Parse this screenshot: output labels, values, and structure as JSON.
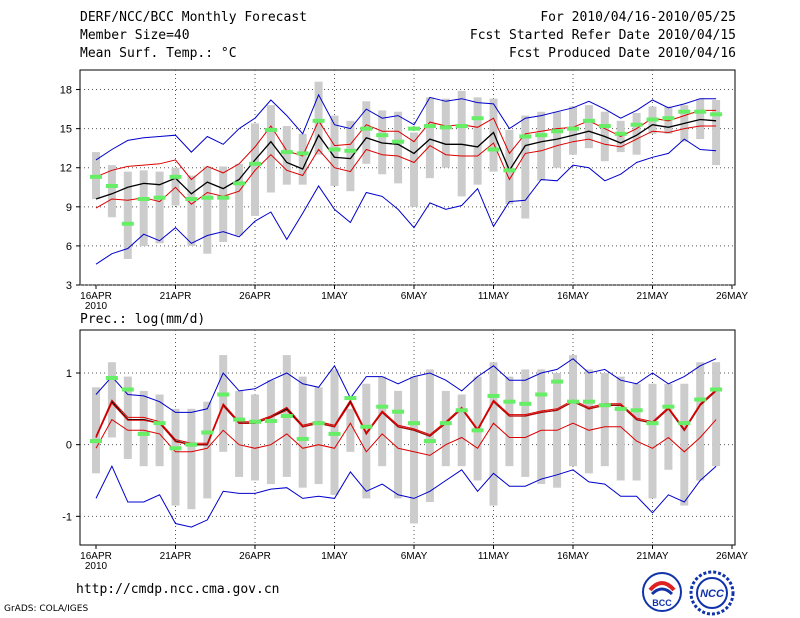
{
  "header": {
    "title": "DERF/NCC/BCC Monthly Forecast",
    "member_size": "Member Size=40",
    "variable": "Mean Surf. Temp.: °C",
    "period": "For 2010/04/16-2010/05/25",
    "fcst_started": "Fcst Started Refer Date 2010/04/15",
    "fcst_produced": "Fcst Produced Date 2010/04/16"
  },
  "footer": {
    "url": "http://cmdp.ncc.cma.gov.cn",
    "credit": "GrADS: COLA/IGES",
    "logo1_text": "BCC",
    "logo2_text": "NCC"
  },
  "colors": {
    "box": "#cccccc",
    "obs": "#66ee66",
    "envelope": "#0000cc",
    "quantile": "#dd0000",
    "mean": "#000000",
    "grid": "#555555"
  },
  "chart_data": [
    {
      "type": "line",
      "title": "Mean Surf. Temp.: °C",
      "x": [
        "16APR",
        "17APR",
        "18APR",
        "19APR",
        "20APR",
        "21APR",
        "22APR",
        "23APR",
        "24APR",
        "25APR",
        "26APR",
        "27APR",
        "28APR",
        "29APR",
        "30APR",
        "1MAY",
        "2MAY",
        "3MAY",
        "4MAY",
        "5MAY",
        "6MAY",
        "7MAY",
        "8MAY",
        "9MAY",
        "10MAY",
        "11MAY",
        "12MAY",
        "13MAY",
        "14MAY",
        "15MAY",
        "16MAY",
        "17MAY",
        "18MAY",
        "19MAY",
        "20MAY",
        "21MAY",
        "22MAY",
        "23MAY",
        "24MAY",
        "25MAY"
      ],
      "xticks": [
        "16APR",
        "21APR",
        "26APR",
        "1MAY",
        "6MAY",
        "11MAY",
        "16MAY",
        "21MAY",
        "26MAY"
      ],
      "xtick_sub": "2010",
      "yticks": [
        3,
        6,
        9,
        12,
        15,
        18
      ],
      "ylim": [
        3,
        19.5
      ],
      "series": [
        {
          "name": "max",
          "values": [
            12.6,
            13.4,
            14.1,
            14.3,
            14.4,
            14.5,
            13.2,
            14.4,
            13.8,
            15.0,
            15.8,
            17.2,
            16.0,
            14.6,
            17.6,
            15.3,
            15.0,
            16.5,
            15.8,
            16.0,
            15.3,
            17.4,
            17.1,
            17.3,
            17.0,
            16.9,
            15.0,
            15.8,
            16.0,
            16.3,
            16.6,
            17.1,
            16.5,
            15.8,
            16.4,
            17.2,
            16.6,
            16.9,
            17.3,
            17.3
          ]
        },
        {
          "name": "q_high",
          "values": [
            11.3,
            11.8,
            12.1,
            12.2,
            12.3,
            12.6,
            11.1,
            12.1,
            11.6,
            12.3,
            13.6,
            15.2,
            13.3,
            12.9,
            15.6,
            13.7,
            13.8,
            15.3,
            14.8,
            14.8,
            14.0,
            15.5,
            15.2,
            15.3,
            15.1,
            15.8,
            13.1,
            14.6,
            14.8,
            15.0,
            15.1,
            15.6,
            15.0,
            14.4,
            15.0,
            15.8,
            15.6,
            16.0,
            16.4,
            16.4
          ]
        },
        {
          "name": "mean",
          "values": [
            9.6,
            10.0,
            10.5,
            10.8,
            10.7,
            11.2,
            10.0,
            10.9,
            10.4,
            11.1,
            12.6,
            14.0,
            12.4,
            11.9,
            14.5,
            12.8,
            12.7,
            14.3,
            13.9,
            13.8,
            13.1,
            14.2,
            13.8,
            13.8,
            13.6,
            14.7,
            11.8,
            13.7,
            14.0,
            14.2,
            14.5,
            14.8,
            14.4,
            13.9,
            14.5,
            15.3,
            15.1,
            15.4,
            15.7,
            15.6
          ]
        },
        {
          "name": "q_low",
          "values": [
            8.9,
            9.6,
            9.5,
            9.7,
            9.4,
            10.5,
            9.2,
            10.1,
            9.8,
            10.2,
            11.8,
            13.0,
            11.8,
            11.4,
            13.4,
            12.0,
            11.7,
            13.4,
            13.0,
            12.9,
            12.4,
            13.7,
            13.0,
            12.9,
            12.9,
            13.9,
            11.1,
            13.1,
            13.3,
            13.7,
            14.0,
            14.2,
            13.8,
            13.6,
            14.2,
            14.8,
            14.7,
            15.0,
            15.2,
            15.2
          ]
        },
        {
          "name": "min",
          "values": [
            4.6,
            5.4,
            5.8,
            6.9,
            6.4,
            7.4,
            6.2,
            6.8,
            7.1,
            6.7,
            7.9,
            8.6,
            6.5,
            8.5,
            10.6,
            8.8,
            7.8,
            10.1,
            9.8,
            8.8,
            7.4,
            9.3,
            8.8,
            9.1,
            10.4,
            7.5,
            9.4,
            9.5,
            11.1,
            11.0,
            12.2,
            12.0,
            11.0,
            11.5,
            12.4,
            12.8,
            13.1,
            14.2,
            13.4,
            13.3
          ]
        }
      ],
      "box_low": [
        9.6,
        8.2,
        5.0,
        6.0,
        6.2,
        9.1,
        6.0,
        5.4,
        6.3,
        6.8,
        8.3,
        10.1,
        10.7,
        10.7,
        13.0,
        10.6,
        10.2,
        12.3,
        11.5,
        10.8,
        9.0,
        11.2,
        12.0,
        9.8,
        10.7,
        11.7,
        9.2,
        8.1,
        11.0,
        12.0,
        13.0,
        13.5,
        12.5,
        13.2,
        13.0,
        14.6,
        14.6,
        14.0,
        14.2,
        12.2
      ],
      "box_high": [
        13.2,
        12.2,
        11.7,
        11.8,
        11.7,
        12.0,
        11.4,
        12.1,
        12.1,
        12.3,
        15.4,
        16.8,
        15.2,
        14.6,
        18.6,
        16.0,
        15.6,
        17.1,
        16.4,
        16.3,
        14.7,
        17.4,
        17.3,
        17.9,
        17.4,
        17.3,
        14.9,
        16.0,
        16.3,
        16.3,
        16.7,
        16.8,
        16.3,
        15.6,
        16.2,
        16.7,
        16.7,
        16.8,
        17.3,
        17.2
      ],
      "obs": [
        11.3,
        10.6,
        7.7,
        9.6,
        9.7,
        11.3,
        9.6,
        9.7,
        9.7,
        10.8,
        12.3,
        14.9,
        13.2,
        13.1,
        15.6,
        13.4,
        13.3,
        15.0,
        14.5,
        14.0,
        15.0,
        15.2,
        15.1,
        15.2,
        15.8,
        13.4,
        11.8,
        14.4,
        14.5,
        14.8,
        15.0,
        15.6,
        15.2,
        14.6,
        15.3,
        15.7,
        15.8,
        16.3,
        16.3,
        16.1
      ]
    },
    {
      "type": "line",
      "title": "Prec.: log(mm/d)",
      "x": [
        "16APR",
        "17APR",
        "18APR",
        "19APR",
        "20APR",
        "21APR",
        "22APR",
        "23APR",
        "24APR",
        "25APR",
        "26APR",
        "27APR",
        "28APR",
        "29APR",
        "30APR",
        "1MAY",
        "2MAY",
        "3MAY",
        "4MAY",
        "5MAY",
        "6MAY",
        "7MAY",
        "8MAY",
        "9MAY",
        "10MAY",
        "11MAY",
        "12MAY",
        "13MAY",
        "14MAY",
        "15MAY",
        "16MAY",
        "17MAY",
        "18MAY",
        "19MAY",
        "20MAY",
        "21MAY",
        "22MAY",
        "23MAY",
        "24MAY",
        "25MAY"
      ],
      "xticks": [
        "16APR",
        "21APR",
        "26APR",
        "1MAY",
        "6MAY",
        "11MAY",
        "16MAY",
        "21MAY",
        "26MAY"
      ],
      "xtick_sub": "2010",
      "yticks": [
        -1,
        0,
        1
      ],
      "ylim": [
        -1.4,
        1.6
      ],
      "series": [
        {
          "name": "max",
          "values": [
            0.7,
            0.95,
            0.7,
            0.68,
            0.6,
            0.45,
            0.45,
            0.5,
            1.0,
            0.75,
            0.78,
            0.9,
            1.0,
            0.85,
            0.8,
            1.1,
            0.65,
            0.95,
            0.95,
            0.85,
            0.95,
            1.0,
            0.9,
            0.75,
            0.95,
            1.1,
            0.9,
            0.9,
            1.0,
            1.05,
            1.2,
            1.0,
            1.05,
            0.9,
            0.85,
            1.0,
            0.85,
            0.95,
            1.1,
            1.2
          ]
        },
        {
          "name": "mean",
          "values": [
            0.1,
            0.6,
            0.35,
            0.35,
            0.3,
            0.05,
            0.0,
            0.0,
            0.55,
            0.3,
            0.3,
            0.38,
            0.5,
            0.25,
            0.3,
            0.25,
            0.6,
            0.15,
            0.45,
            0.25,
            0.2,
            0.12,
            0.3,
            0.5,
            0.2,
            0.6,
            0.4,
            0.4,
            0.45,
            0.48,
            0.6,
            0.5,
            0.55,
            0.55,
            0.35,
            0.3,
            0.5,
            0.2,
            0.55,
            0.75
          ]
        },
        {
          "name": "q_high",
          "values": [
            0.12,
            0.62,
            0.38,
            0.38,
            0.32,
            0.07,
            0.02,
            0.02,
            0.57,
            0.32,
            0.32,
            0.4,
            0.52,
            0.27,
            0.32,
            0.27,
            0.62,
            0.17,
            0.47,
            0.27,
            0.22,
            0.14,
            0.32,
            0.52,
            0.22,
            0.62,
            0.42,
            0.42,
            0.47,
            0.5,
            0.62,
            0.52,
            0.57,
            0.57,
            0.37,
            0.32,
            0.52,
            0.22,
            0.57,
            0.77
          ]
        },
        {
          "name": "q_low",
          "values": [
            -0.05,
            0.35,
            0.2,
            0.2,
            0.15,
            -0.1,
            -0.1,
            -0.05,
            0.2,
            0.0,
            -0.05,
            0.0,
            0.15,
            -0.05,
            0.0,
            -0.05,
            0.3,
            -0.1,
            0.15,
            -0.05,
            -0.1,
            -0.15,
            0.0,
            0.1,
            -0.05,
            0.3,
            0.1,
            0.1,
            0.2,
            0.2,
            0.3,
            0.2,
            0.25,
            0.25,
            0.05,
            -0.05,
            0.1,
            -0.1,
            0.1,
            0.35
          ]
        },
        {
          "name": "min",
          "values": [
            -0.75,
            -0.3,
            -0.8,
            -0.8,
            -0.7,
            -1.1,
            -1.15,
            -1.05,
            -0.65,
            -0.68,
            -0.68,
            -0.62,
            -0.6,
            -0.75,
            -0.72,
            -0.75,
            -0.38,
            -0.65,
            -0.55,
            -0.7,
            -0.75,
            -0.65,
            -0.5,
            -0.35,
            -0.65,
            -0.4,
            -0.58,
            -0.58,
            -0.48,
            -0.42,
            -0.35,
            -0.52,
            -0.55,
            -0.72,
            -0.72,
            -0.95,
            -0.7,
            -0.8,
            -0.5,
            -0.3
          ]
        },
        {
          "name": "obs_line",
          "values": [
            0.1,
            0.58,
            0.34,
            0.34,
            0.3,
            0.04,
            0.0,
            0.0,
            0.54,
            0.3,
            0.3,
            0.38,
            0.48,
            0.25,
            0.3,
            0.25,
            0.58,
            0.15,
            0.45,
            0.25,
            0.2,
            0.12,
            0.3,
            0.5,
            0.2,
            0.6,
            0.4,
            0.4,
            0.45,
            0.48,
            0.6,
            0.5,
            0.55,
            0.55,
            0.35,
            0.3,
            0.5,
            0.2,
            0.55,
            0.75
          ]
        }
      ],
      "box_low": [
        -0.4,
        0.1,
        -0.2,
        -0.3,
        -0.3,
        -0.85,
        -0.9,
        -0.75,
        -0.1,
        -0.45,
        -0.5,
        -0.55,
        -0.45,
        -0.6,
        -0.55,
        -0.7,
        -0.1,
        -0.75,
        -0.3,
        -0.75,
        -1.1,
        -0.8,
        -0.3,
        -0.3,
        -0.5,
        -0.85,
        -0.3,
        -0.45,
        -0.55,
        -0.6,
        -0.3,
        -0.4,
        -0.3,
        -0.5,
        -0.5,
        -0.75,
        -0.35,
        -0.85,
        -0.5,
        -0.3
      ],
      "box_high": [
        0.8,
        1.15,
        0.95,
        0.75,
        0.7,
        0.5,
        0.5,
        0.6,
        1.25,
        0.75,
        0.7,
        0.9,
        1.25,
        0.95,
        0.8,
        1.05,
        0.5,
        0.85,
        0.95,
        0.75,
        0.95,
        1.05,
        0.75,
        0.7,
        0.95,
        1.15,
        0.95,
        1.05,
        1.05,
        1.0,
        1.25,
        1.05,
        1.0,
        0.95,
        0.85,
        0.85,
        0.85,
        0.85,
        1.15,
        1.15
      ],
      "obs": [
        0.05,
        0.93,
        0.77,
        0.15,
        0.3,
        -0.05,
        0.0,
        0.17,
        0.7,
        0.35,
        0.32,
        0.33,
        0.4,
        0.08,
        0.3,
        0.15,
        0.65,
        0.25,
        0.53,
        0.46,
        0.3,
        0.05,
        0.3,
        0.48,
        0.2,
        0.68,
        0.6,
        0.57,
        0.7,
        0.88,
        0.6,
        0.6,
        0.55,
        0.5,
        0.48,
        0.3,
        0.53,
        0.3,
        0.63,
        0.77
      ]
    }
  ]
}
